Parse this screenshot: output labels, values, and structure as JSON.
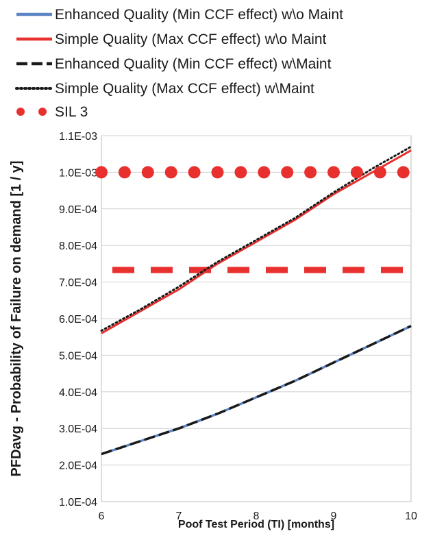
{
  "chart_data": {
    "type": "line",
    "xlabel": "Poof Test Period (TI) [months]",
    "ylabel": "PFDavg - Probability of Failure on demand [1 / y]",
    "xlim": [
      6,
      10
    ],
    "ylim": [
      0.0001,
      0.0011
    ],
    "x_ticks": [
      6,
      7,
      8,
      9,
      10
    ],
    "y_ticks": [
      0.0001,
      0.0002,
      0.0003,
      0.0004,
      0.0005,
      0.0006,
      0.0007,
      0.0008,
      0.0009,
      0.001,
      0.0011
    ],
    "y_tick_labels": [
      "1.0E-04",
      "2.0E-04",
      "3.0E-04",
      "4.0E-04",
      "5.0E-04",
      "6.0E-04",
      "7.0E-04",
      "8.0E-04",
      "9.0E-04",
      "1.0E-03",
      "1.1E-03"
    ],
    "grid": "horizontal",
    "legend_position": "top",
    "series": [
      {
        "name": "Enhanced Quality (Min CCF effect) w\\o Maint",
        "color": "#5b84c4",
        "style": "solid",
        "x": [
          6,
          6.5,
          7,
          7.5,
          8,
          8.5,
          9,
          9.5,
          10
        ],
        "values": [
          0.00023,
          0.000265,
          0.0003,
          0.00034,
          0.000385,
          0.00043,
          0.00048,
          0.00053,
          0.00058
        ]
      },
      {
        "name": "Simple Quality (Max CCF effect) w\\o Maint",
        "color": "#e8312f",
        "style": "solid",
        "x": [
          6,
          6.5,
          7,
          7.5,
          8,
          8.5,
          9,
          9.5,
          10
        ],
        "values": [
          0.00056,
          0.00062,
          0.00068,
          0.00075,
          0.00081,
          0.00087,
          0.00094,
          0.001,
          0.00106
        ]
      },
      {
        "name": "Enhanced Quality (Min CCF effect) w\\Maint",
        "color": "#1a1a1a",
        "style": "dashed",
        "x": [
          6,
          6.5,
          7,
          7.5,
          8,
          8.5,
          9,
          9.5,
          10
        ],
        "values": [
          0.00023,
          0.000265,
          0.0003,
          0.00034,
          0.000385,
          0.00043,
          0.00048,
          0.00053,
          0.00058
        ]
      },
      {
        "name": "Simple Quality (Max CCF effect) w\\Maint",
        "color": "#1a1a1a",
        "style": "dotted",
        "x": [
          6,
          6.5,
          7,
          7.5,
          8,
          8.5,
          9,
          9.5,
          10
        ],
        "values": [
          0.000567,
          0.000625,
          0.000687,
          0.000755,
          0.000815,
          0.000875,
          0.000945,
          0.00101,
          0.00107
        ]
      },
      {
        "name": "SIL 3",
        "color": "#e8312f",
        "style": "dots",
        "x": [
          6,
          6.3,
          6.6,
          6.9,
          7.2,
          7.5,
          7.8,
          8.1,
          8.4,
          8.7,
          9,
          9.3,
          9.6,
          9.9
        ],
        "values": [
          0.001,
          0.001,
          0.001,
          0.001,
          0.001,
          0.001,
          0.001,
          0.001,
          0.001,
          0.001,
          0.001,
          0.001,
          0.001,
          0.001
        ]
      }
    ],
    "reference_lines": [
      {
        "y": 0.000733,
        "color": "#e8312f",
        "style": "long-dash"
      }
    ]
  }
}
